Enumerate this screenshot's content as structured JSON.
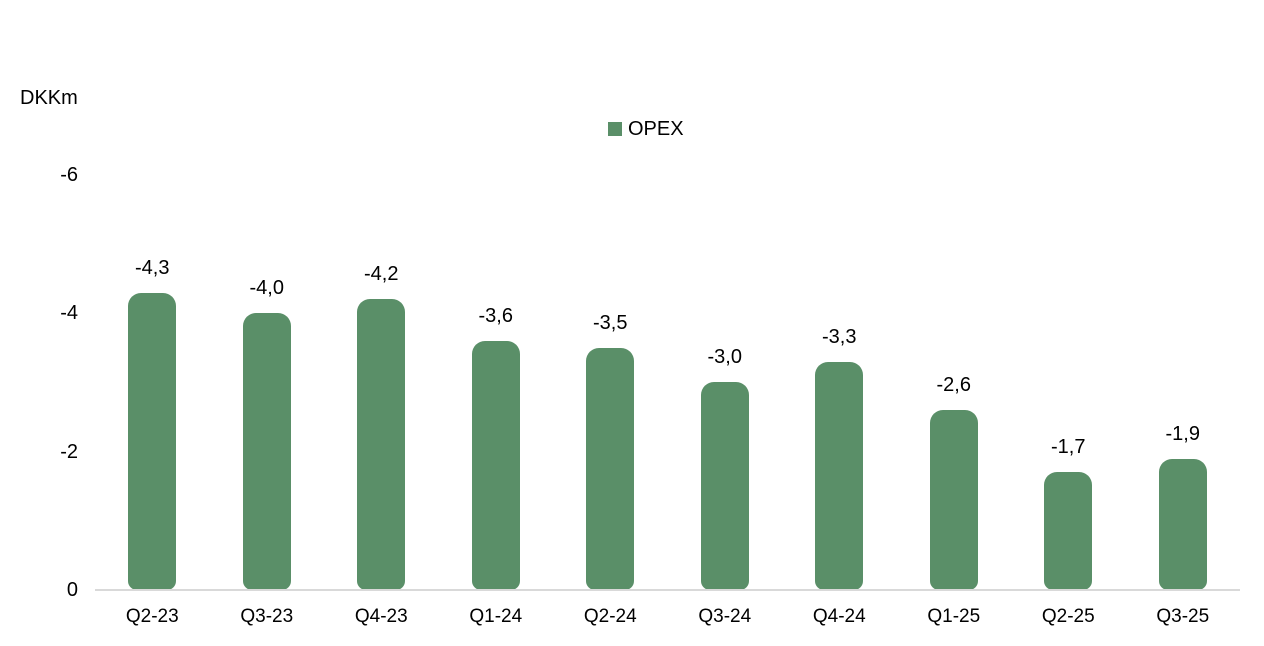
{
  "chart_data": {
    "type": "bar",
    "title": "",
    "unit_label": "DKKm",
    "legend": {
      "label": "OPEX",
      "marker_color": "#5a8f68",
      "position": "top-center"
    },
    "categories": [
      "Q2-23",
      "Q3-23",
      "Q4-23",
      "Q1-24",
      "Q2-24",
      "Q3-24",
      "Q4-24",
      "Q1-25",
      "Q2-25",
      "Q3-25"
    ],
    "series": [
      {
        "name": "OPEX",
        "values": [
          -4.3,
          -4.0,
          -4.2,
          -3.6,
          -3.5,
          -3.0,
          -3.3,
          -2.6,
          -1.7,
          -1.9
        ],
        "value_labels": [
          "-4,3",
          "-4,0",
          "-4,2",
          "-3,6",
          "-3,5",
          "-3,0",
          "-3,3",
          "-2,6",
          "-1,7",
          "-1,9"
        ],
        "color": "#5a8f68"
      }
    ],
    "xlabel": "",
    "ylabel": "DKKm",
    "y_axis": {
      "inverted_negative": true,
      "ticks": [
        0,
        -2,
        -4,
        -6
      ],
      "tick_labels": [
        "0",
        "-2",
        "-4",
        "-6"
      ],
      "min": -6,
      "max": 0
    },
    "grid": false,
    "axis_line_color": "#d9d9d9",
    "text_color": "#000000",
    "background_color": "#ffffff"
  }
}
